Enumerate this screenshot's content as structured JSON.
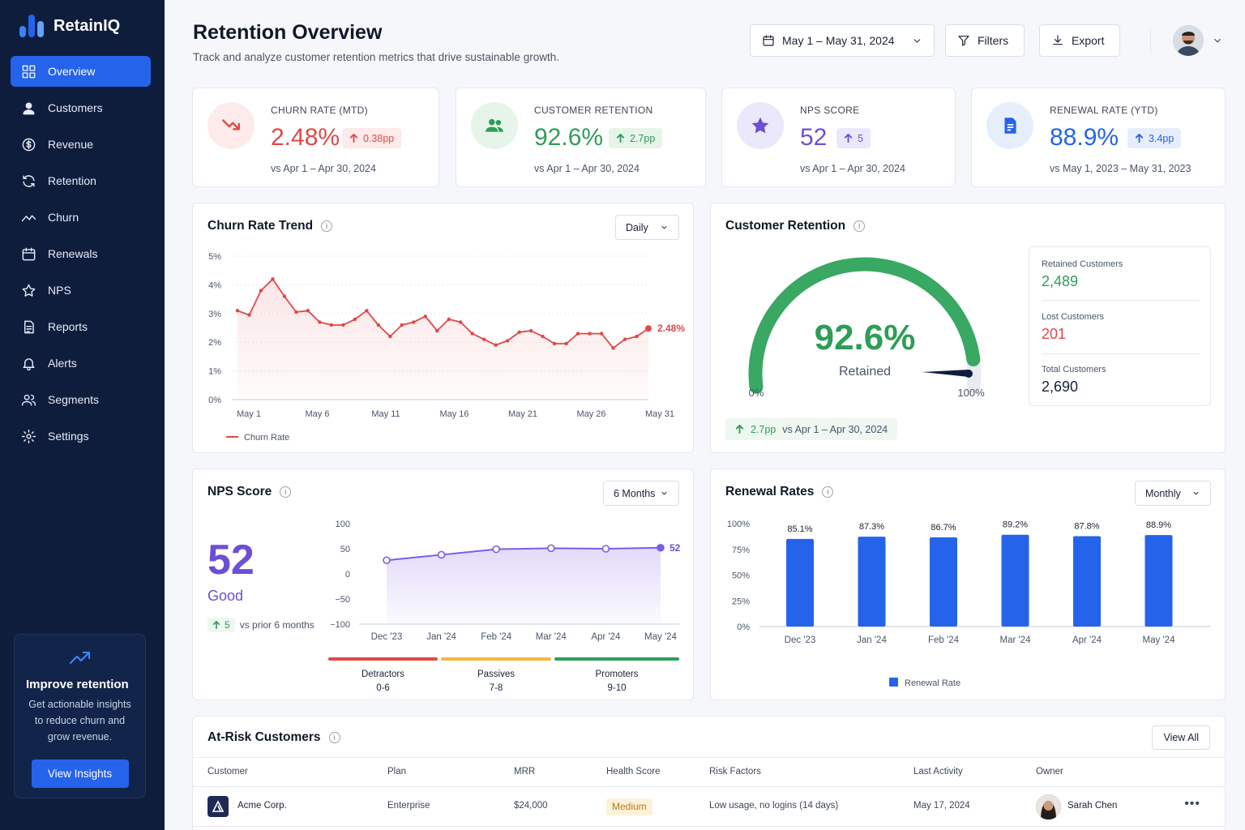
{
  "app": {
    "name": "RetainIQ"
  },
  "sidebar": {
    "items": [
      {
        "label": "Overview",
        "icon": "grid-icon",
        "active": true
      },
      {
        "label": "Customers",
        "icon": "user-icon"
      },
      {
        "label": "Revenue",
        "icon": "dollar-icon"
      },
      {
        "label": "Retention",
        "icon": "refresh-icon"
      },
      {
        "label": "Churn",
        "icon": "trend-icon"
      },
      {
        "label": "Renewals",
        "icon": "calendar-icon"
      },
      {
        "label": "NPS",
        "icon": "star-icon"
      },
      {
        "label": "Reports",
        "icon": "document-icon"
      },
      {
        "label": "Alerts",
        "icon": "bell-icon"
      },
      {
        "label": "Segments",
        "icon": "users-icon"
      },
      {
        "label": "Settings",
        "icon": "gear-icon"
      }
    ],
    "promo": {
      "title": "Improve retention",
      "text_lines": [
        "Get actionable insights",
        "to reduce churn and",
        "grow revenue."
      ],
      "button": "View Insights"
    }
  },
  "header": {
    "title": "Retention Overview",
    "subtitle": "Track and analyze customer retention metrics that drive sustainable growth.",
    "date_range": "May 1 – May 31, 2024",
    "filters": "Filters",
    "export": "Export"
  },
  "kpis": [
    {
      "label": "CHURN RATE (MTD)",
      "value": "2.48%",
      "delta": "0.38pp",
      "compare": "vs Apr 1 – Apr 30, 2024",
      "color": "#e04848",
      "bg": "#fdeaea",
      "delta_bg": "#fdeaea",
      "icon": "trend-down-icon"
    },
    {
      "label": "CUSTOMER RETENTION",
      "value": "92.6%",
      "delta": "2.7pp",
      "compare": "vs Apr 1 – Apr 30, 2024",
      "color": "#2e9d57",
      "bg": "#e6f4ea",
      "delta_bg": "#e6f4ea",
      "icon": "users-icon"
    },
    {
      "label": "NPS SCORE",
      "value": "52",
      "delta": "5",
      "compare": "vs Apr 1 – Apr 30, 2024",
      "color": "#6d4fd6",
      "bg": "#ece8fb",
      "delta_bg": "#ece8fb",
      "icon": "star-icon"
    },
    {
      "label": "RENEWAL RATE (YTD)",
      "value": "88.9%",
      "delta": "3.4pp",
      "compare": "vs May 1, 2023 – May 31, 2023",
      "color": "#2563eb",
      "bg": "#e6eefc",
      "delta_bg": "#e6eefc",
      "icon": "document-icon"
    }
  ],
  "churn_panel": {
    "title": "Churn Rate Trend",
    "period": "Daily",
    "legend": "Churn Rate",
    "end_label": "2.48%"
  },
  "retention_panel": {
    "title": "Customer Retention",
    "gauge_value": "92.6%",
    "gauge_fraction": 0.926,
    "gauge_label": "Retained",
    "gauge_min": "0%",
    "gauge_max": "100%",
    "retained_label": "Retained Customers",
    "retained_value": "2,489",
    "lost_label": "Lost Customers",
    "lost_value": "201",
    "total_label": "Total Customers",
    "total_value": "2,690",
    "delta": "2.7pp",
    "delta_compare": "vs Apr 1 – Apr 30, 2024"
  },
  "nps_panel": {
    "title": "NPS Score",
    "period": "6 Months",
    "score": "52",
    "rating": "Good",
    "delta": "5",
    "delta_compare": "vs prior 6 months",
    "end_label": "52",
    "bands": [
      {
        "name": "Detractors",
        "range": "0-6",
        "color": "#e04848"
      },
      {
        "name": "Passives",
        "range": "7-8",
        "color": "#f5b83d"
      },
      {
        "name": "Promoters",
        "range": "9-10",
        "color": "#2e9d57"
      }
    ]
  },
  "renewal_panel": {
    "title": "Renewal Rates",
    "period": "Monthly",
    "legend": "Renewal Rate"
  },
  "chart_data": [
    {
      "type": "line",
      "title": "Churn Rate Trend",
      "series": [
        {
          "name": "Churn Rate",
          "values": [
            3.1,
            2.95,
            3.8,
            4.2,
            3.6,
            3.05,
            3.1,
            2.7,
            2.6,
            2.6,
            2.8,
            3.1,
            2.6,
            2.2,
            2.6,
            2.7,
            2.9,
            2.4,
            2.8,
            2.7,
            2.3,
            2.1,
            1.9,
            2.05,
            2.35,
            2.4,
            2.2,
            1.95,
            1.95,
            2.3,
            2.3,
            2.3,
            1.8,
            2.1,
            2.2,
            2.48
          ]
        }
      ],
      "x_ticks": [
        "May 1",
        "May 6",
        "May 11",
        "May 16",
        "May 21",
        "May 26",
        "May 31"
      ],
      "y_ticks": [
        "5%",
        "4%",
        "3%",
        "2%",
        "1%",
        "0%"
      ],
      "ylim": [
        0,
        5
      ],
      "grid": true
    },
    {
      "type": "line",
      "title": "NPS Score",
      "categories": [
        "Dec '23",
        "Jan '24",
        "Feb '24",
        "Mar '24",
        "Apr '24",
        "May '24"
      ],
      "values": [
        27,
        38,
        49,
        51,
        50,
        52
      ],
      "y_ticks": [
        "100",
        "50",
        "0",
        "−50",
        "−100"
      ],
      "ylim": [
        -100,
        100
      ]
    },
    {
      "type": "bar",
      "title": "Renewal Rates",
      "categories": [
        "Dec '23",
        "Jan '24",
        "Feb '24",
        "Mar '24",
        "Apr '24",
        "May '24"
      ],
      "values": [
        85.1,
        87.3,
        86.7,
        89.2,
        87.8,
        88.9
      ],
      "labels": [
        "85.1%",
        "87.3%",
        "86.7%",
        "89.2%",
        "87.8%",
        "88.9%"
      ],
      "y_ticks": [
        "100%",
        "75%",
        "50%",
        "25%",
        "0%"
      ],
      "ylim": [
        0,
        100
      ],
      "legend": "Renewal Rate",
      "color": "#2563eb"
    }
  ],
  "table": {
    "title": "At-Risk Customers",
    "view_all": "View All",
    "columns": [
      "Customer",
      "Plan",
      "MRR",
      "Health Score",
      "Risk Factors",
      "Last Activity",
      "Owner"
    ],
    "rows": [
      {
        "customer": "Acme Corp.",
        "plan": "Enterprise",
        "mrr": "$24,000",
        "health": "Medium",
        "risk": "Low usage, no logins (14 days)",
        "last_activity": "May 17, 2024",
        "owner": "Sarah Chen"
      }
    ]
  }
}
